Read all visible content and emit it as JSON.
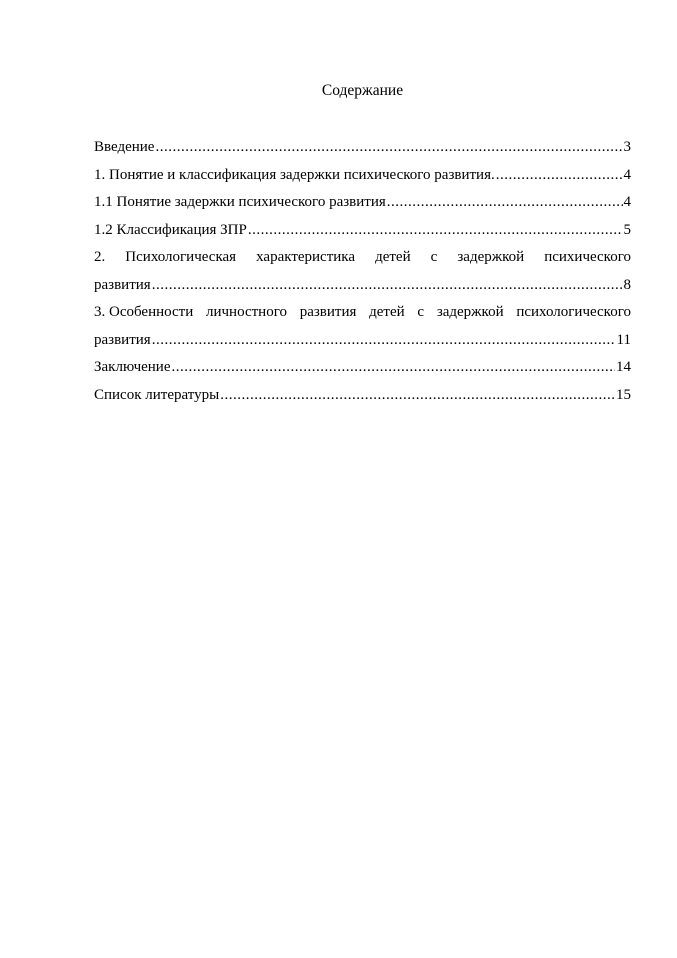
{
  "title": "Содержание",
  "entries": [
    {
      "text": "Введение",
      "page": "3"
    },
    {
      "text": "1. Понятие и классификация задержки психического развития. ",
      "page": "4"
    },
    {
      "text": "1.1 Понятие задержки психического развития",
      "page": "4"
    },
    {
      "text": "1.2 Классификация ЗПР ",
      "page": "5"
    },
    {
      "first_line_words": [
        "2.",
        "Психологическая",
        "характеристика",
        "детей",
        "с",
        "задержкой",
        "психического"
      ],
      "text": "развития",
      "page": "8"
    },
    {
      "first_line_words": [
        "3. Особенности",
        "личностного",
        "развития",
        "детей",
        "с",
        "задержкой",
        "психологического"
      ],
      "text": "развития",
      "page": "11"
    },
    {
      "text": "Заключение ",
      "page": "14"
    },
    {
      "text": "Список литературы ",
      "page": "15"
    }
  ]
}
